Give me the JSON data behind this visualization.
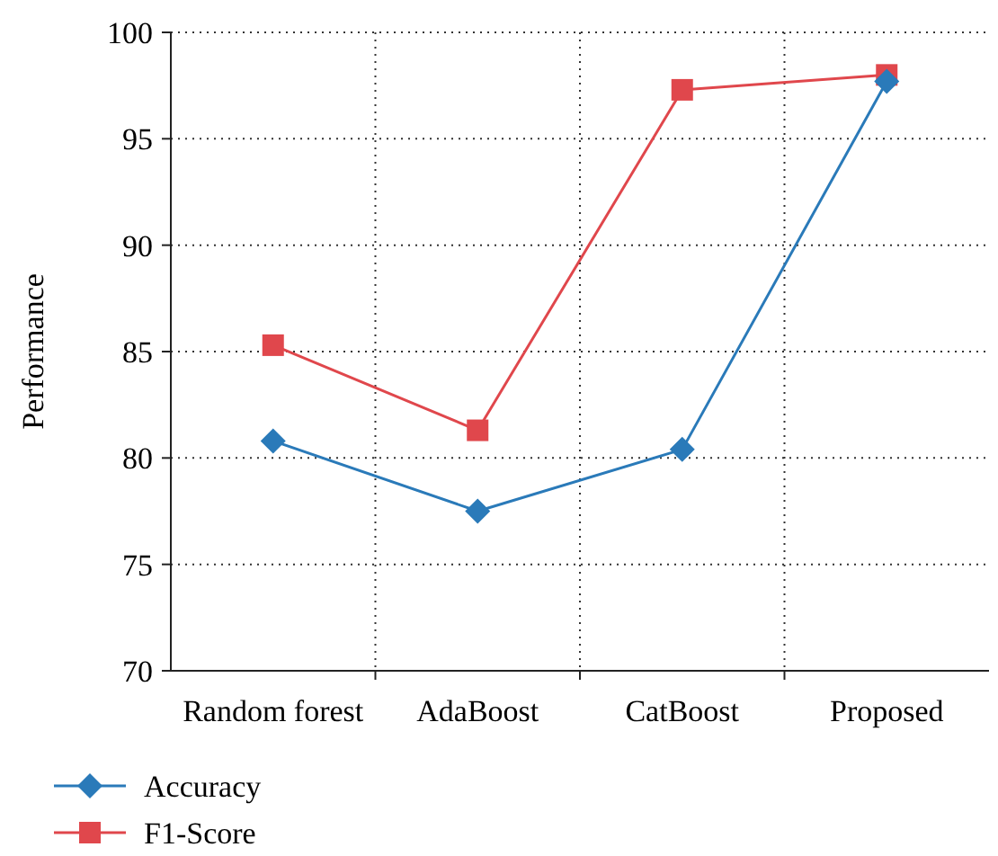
{
  "chart_data": {
    "type": "line",
    "ylabel": "Performance",
    "categories": [
      "Random forest",
      "AdaBoost",
      "CatBoost",
      "Proposed"
    ],
    "series": [
      {
        "name": "Accuracy",
        "color": "#2a7ab9",
        "values": [
          80.8,
          77.5,
          80.4,
          97.7
        ],
        "marker": "diamond"
      },
      {
        "name": "F1-Score",
        "color": "#e0474c",
        "values": [
          85.3,
          81.3,
          97.3,
          98.0
        ],
        "marker": "square"
      }
    ],
    "ylim": [
      70,
      100
    ],
    "yticks": [
      70,
      75,
      80,
      85,
      90,
      95,
      100
    ],
    "grid": true,
    "legend": "bottom left"
  }
}
